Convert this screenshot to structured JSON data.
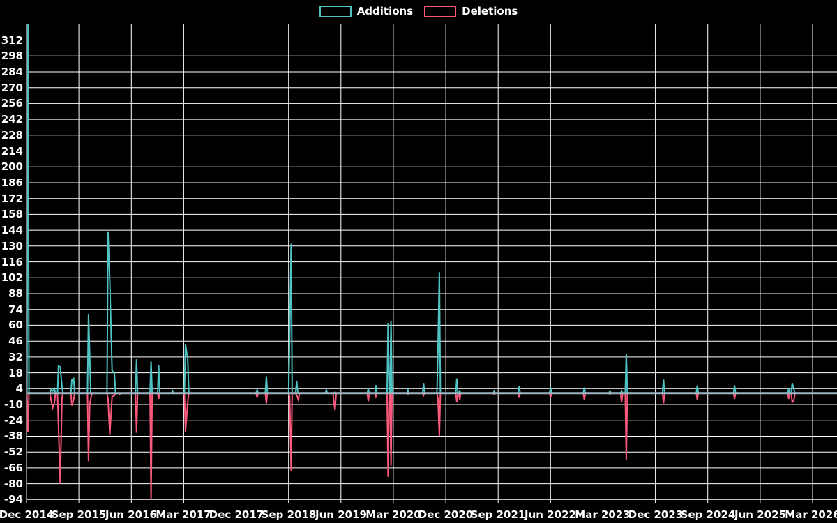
{
  "legend": {
    "items": [
      {
        "label": "Additions",
        "color": "#4fc3c3"
      },
      {
        "label": "Deletions",
        "color": "#fb5a7d"
      }
    ]
  },
  "chart_data": {
    "type": "line",
    "title": "",
    "xlabel": "",
    "ylabel": "",
    "legend_position": "top-center",
    "background_color": "#000000",
    "grid": true,
    "grid_color": "#ffffff",
    "zero_line_color": "#9db4c1",
    "text_color": "#ffffff",
    "x_axis": {
      "tick_labels": [
        "Dec 2014",
        "Sep 2015",
        "Jun 2016",
        "Mar 2017",
        "Dec 2017",
        "Sep 2018",
        "Jun 2019",
        "Mar 2020",
        "Dec 2020",
        "Sep 2021",
        "Jun 2022",
        "Mar 2023",
        "Dec 2023",
        "Sep 2024",
        "Jun 2025",
        "Mar 2026"
      ],
      "months_per_tick": 9,
      "total_months": 139
    },
    "y_axis": {
      "min": -94,
      "max": 312,
      "step": 14,
      "ticks": [
        -94,
        -80,
        -66,
        -52,
        -38,
        -24,
        -10,
        4,
        18,
        32,
        46,
        60,
        74,
        88,
        102,
        116,
        130,
        144,
        158,
        172,
        186,
        200,
        214,
        228,
        242,
        256,
        270,
        284,
        298,
        312
      ]
    },
    "series": [
      {
        "name": "Additions",
        "color": "#4fc3c3",
        "unit": "months since Dec 2014",
        "points": [
          [
            0.25,
            330
          ],
          [
            4.2,
            3
          ],
          [
            4.5,
            2
          ],
          [
            4.8,
            4
          ],
          [
            5.5,
            24
          ],
          [
            5.8,
            23
          ],
          [
            6.1,
            6
          ],
          [
            7.8,
            12
          ],
          [
            8.1,
            13
          ],
          [
            10.65,
            70
          ],
          [
            10.85,
            34
          ],
          [
            14.0,
            143
          ],
          [
            14.3,
            100
          ],
          [
            14.7,
            20
          ],
          [
            15.1,
            17
          ],
          [
            18.9,
            30
          ],
          [
            21.4,
            28
          ],
          [
            22.7,
            25
          ],
          [
            25.1,
            2
          ],
          [
            27.3,
            43
          ],
          [
            27.7,
            30
          ],
          [
            39.6,
            3
          ],
          [
            41.2,
            15
          ],
          [
            45.2,
            50
          ],
          [
            45.45,
            132
          ],
          [
            46.4,
            11
          ],
          [
            51.5,
            3
          ],
          [
            53.0,
            1
          ],
          [
            58.7,
            4
          ],
          [
            60.0,
            7
          ],
          [
            62.1,
            62
          ],
          [
            62.6,
            64
          ],
          [
            65.5,
            3
          ],
          [
            68.2,
            9
          ],
          [
            70.66,
            37
          ],
          [
            70.9,
            107
          ],
          [
            73.9,
            13
          ],
          [
            74.4,
            2
          ],
          [
            80.3,
            2
          ],
          [
            84.6,
            6
          ],
          [
            90.0,
            5
          ],
          [
            95.8,
            5
          ],
          [
            100.2,
            2
          ],
          [
            102.2,
            2
          ],
          [
            103.0,
            35
          ],
          [
            109.4,
            12
          ],
          [
            115.2,
            7
          ],
          [
            121.6,
            7
          ],
          [
            130.9,
            4
          ],
          [
            131.5,
            9
          ],
          [
            131.8,
            3
          ]
        ]
      },
      {
        "name": "Deletions",
        "color": "#fb5a7d",
        "unit": "months since Dec 2014",
        "points": [
          [
            0.25,
            -34
          ],
          [
            4.2,
            -6
          ],
          [
            4.5,
            -13
          ],
          [
            4.8,
            -8
          ],
          [
            5.5,
            -30
          ],
          [
            5.8,
            -80
          ],
          [
            6.1,
            -4
          ],
          [
            7.8,
            -11
          ],
          [
            8.1,
            -6
          ],
          [
            10.65,
            -60
          ],
          [
            10.85,
            -10
          ],
          [
            11.2,
            -1
          ],
          [
            14.0,
            -5
          ],
          [
            14.3,
            -37
          ],
          [
            14.7,
            -3
          ],
          [
            15.1,
            -2
          ],
          [
            16.0,
            -1
          ],
          [
            18.9,
            -35
          ],
          [
            21.4,
            -94
          ],
          [
            22.7,
            -5
          ],
          [
            27.3,
            -34
          ],
          [
            27.7,
            -8
          ],
          [
            39.6,
            -4
          ],
          [
            41.2,
            -9
          ],
          [
            45.2,
            -3
          ],
          [
            45.45,
            -69
          ],
          [
            46.4,
            -2
          ],
          [
            46.7,
            -6
          ],
          [
            52.8,
            -8
          ],
          [
            53.0,
            -15
          ],
          [
            58.7,
            -7
          ],
          [
            60.0,
            -3
          ],
          [
            62.1,
            -74
          ],
          [
            62.6,
            -64
          ],
          [
            65.5,
            -1
          ],
          [
            68.2,
            -2
          ],
          [
            70.66,
            -5
          ],
          [
            70.9,
            -38
          ],
          [
            73.9,
            -8
          ],
          [
            74.4,
            -6
          ],
          [
            80.3,
            -1
          ],
          [
            84.6,
            -4
          ],
          [
            90.0,
            -4
          ],
          [
            95.8,
            -6
          ],
          [
            100.2,
            -1
          ],
          [
            102.2,
            -8
          ],
          [
            103.0,
            -59
          ],
          [
            109.4,
            -9
          ],
          [
            115.2,
            -6
          ],
          [
            121.6,
            -5
          ],
          [
            130.9,
            -5
          ],
          [
            131.5,
            -8
          ],
          [
            131.8,
            -6
          ]
        ]
      }
    ]
  }
}
